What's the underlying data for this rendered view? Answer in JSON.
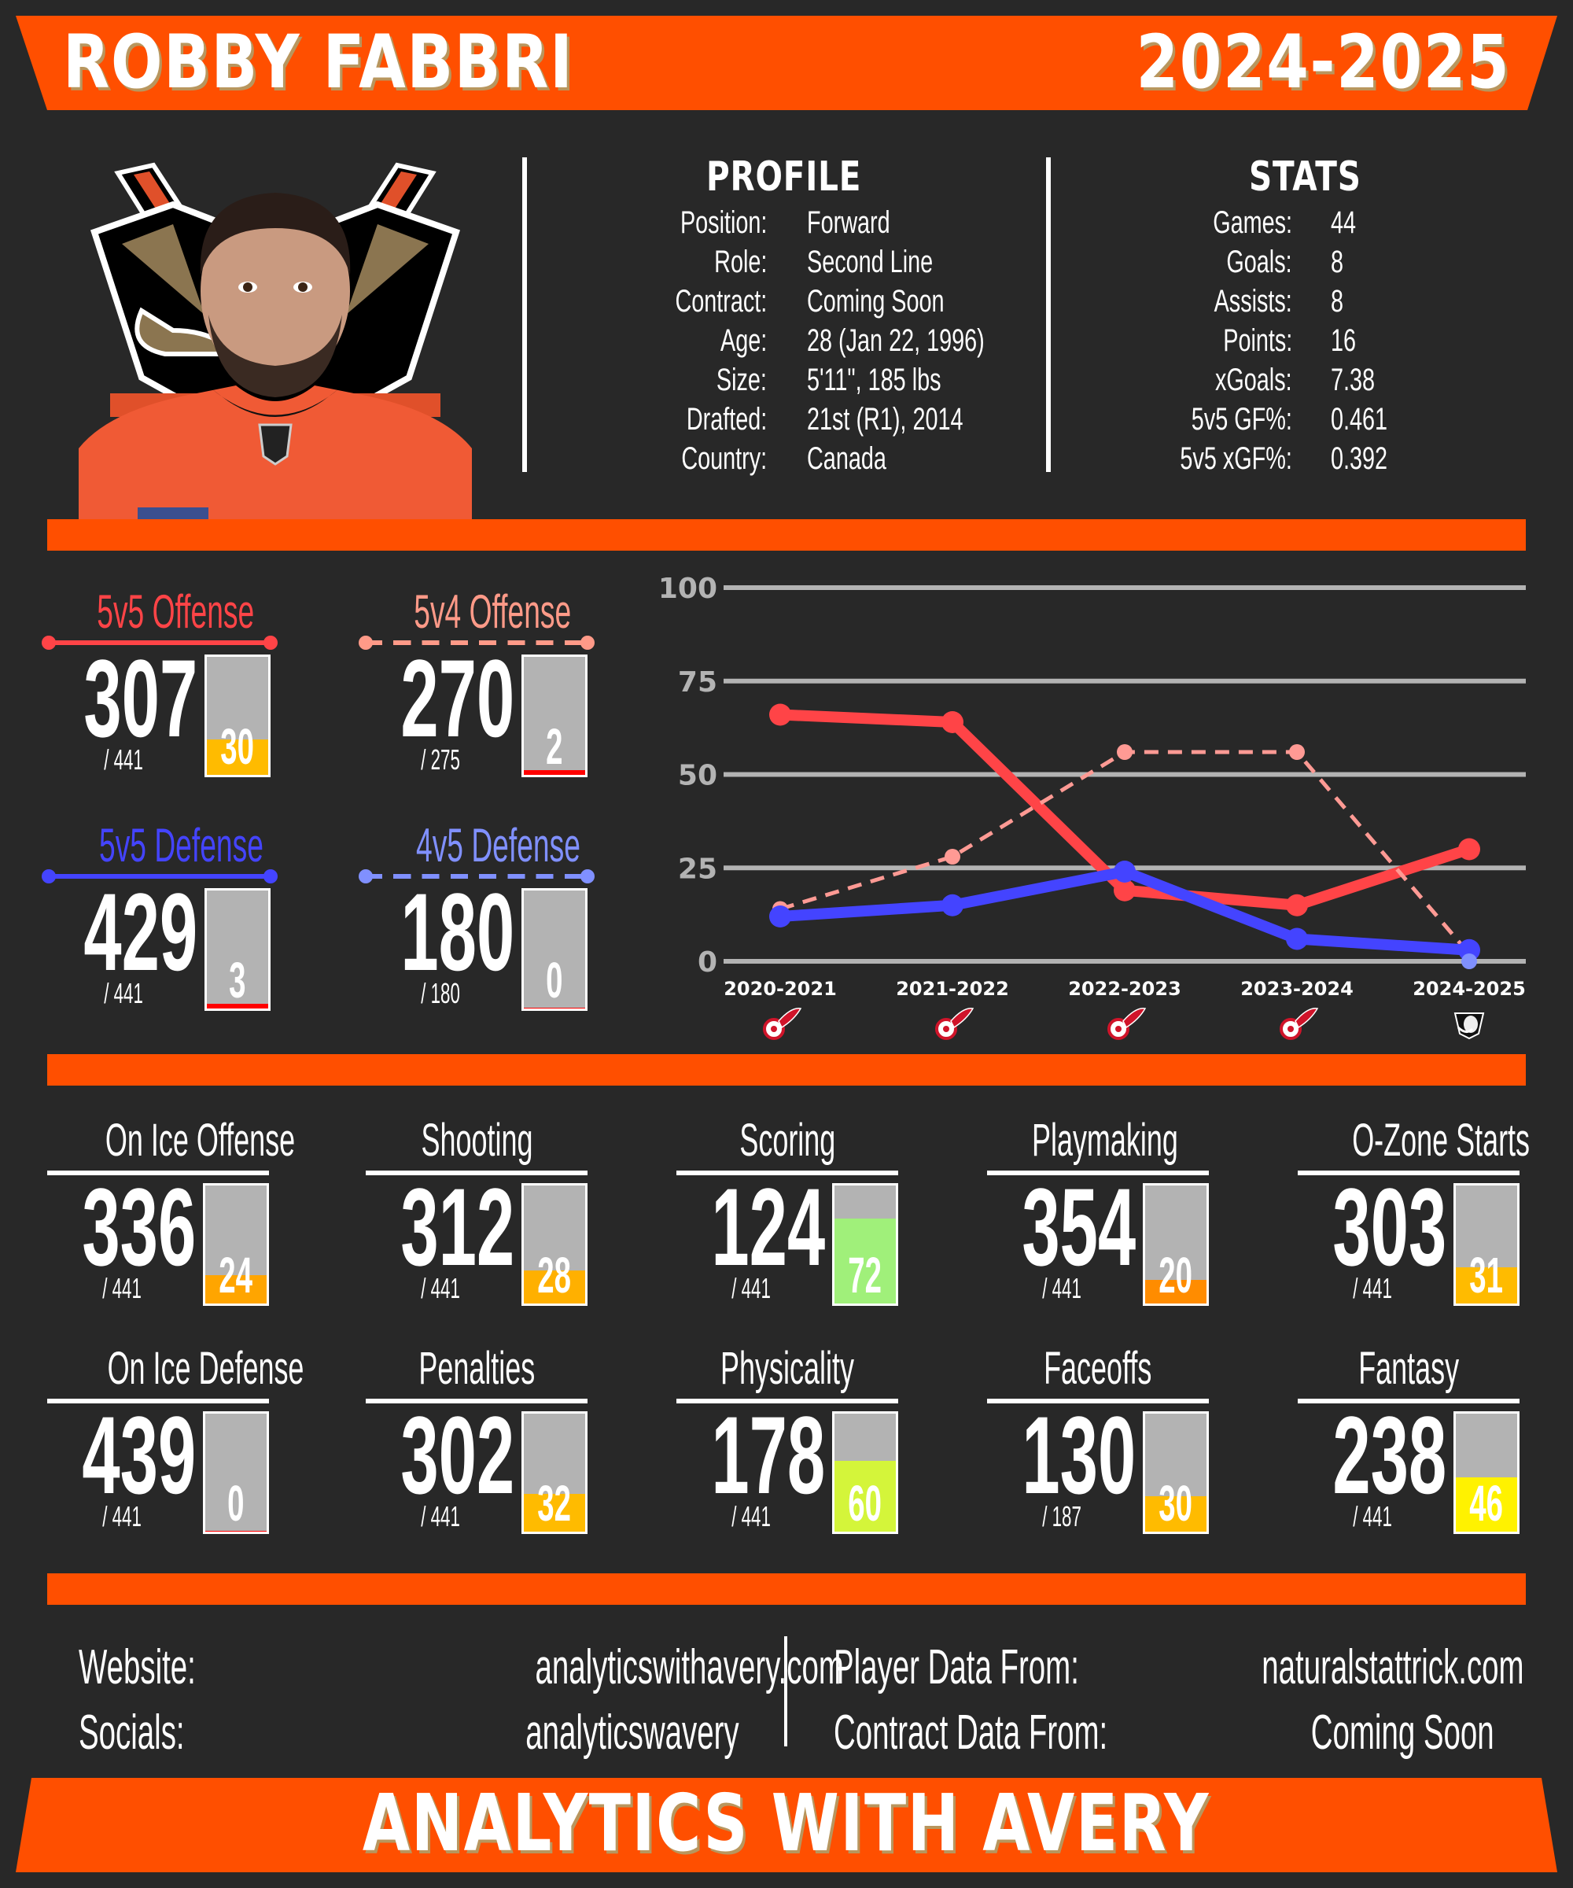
{
  "header": {
    "player_name": "ROBBY FABBRI",
    "season": "2024-2025",
    "banner_color": "#ff4f00"
  },
  "profile": {
    "title": "PROFILE",
    "rows": [
      {
        "label": "Position:",
        "value": "Forward"
      },
      {
        "label": "Role:",
        "value": "Second Line"
      },
      {
        "label": "Contract:",
        "value": "Coming Soon"
      },
      {
        "label": "Age:",
        "value": "28 (Jan 22, 1996)"
      },
      {
        "label": "Size:",
        "value": "5'11\", 185 lbs"
      },
      {
        "label": "Drafted:",
        "value": "21st (R1), 2014"
      },
      {
        "label": "Country:",
        "value": "Canada"
      }
    ]
  },
  "stats": {
    "title": "STATS",
    "rows": [
      {
        "label": "Games:",
        "value": "44"
      },
      {
        "label": "Goals:",
        "value": "8"
      },
      {
        "label": "Assists:",
        "value": "8"
      },
      {
        "label": "Points:",
        "value": "16"
      },
      {
        "label": "xGoals:",
        "value": "7.38"
      },
      {
        "label": "5v5 GF%:",
        "value": "0.461"
      },
      {
        "label": "5v5 xGF%:",
        "value": "0.392"
      }
    ]
  },
  "photo": {
    "icon": "player-headshot-with-ducks-logo",
    "team_logo": "anaheim-ducks-logo"
  },
  "situational": [
    {
      "title": "5v5 Offense",
      "rank": "307",
      "out_of": "/ 441",
      "percentile": "30",
      "pct_value": 30,
      "color": "#ff4447",
      "line": "solid",
      "fill_color": "#ffbb00"
    },
    {
      "title": "5v4 Offense",
      "rank": "270",
      "out_of": "/ 275",
      "percentile": "2",
      "pct_value": 2,
      "color": "#ff9a88",
      "line": "dashed",
      "fill_color": "#ff0000"
    },
    {
      "title": "5v5 Defense",
      "rank": "429",
      "out_of": "/ 441",
      "percentile": "3",
      "pct_value": 3,
      "color": "#4444ff",
      "line": "solid",
      "fill_color": "#ff0000"
    },
    {
      "title": "4v5 Defense",
      "rank": "180",
      "out_of": "/ 180",
      "percentile": "0",
      "pct_value": 0.5,
      "color": "#8090ff",
      "line": "dashed",
      "fill_color": "#ff0000"
    }
  ],
  "chart_data": {
    "type": "line",
    "title": "",
    "xlabel": "",
    "ylabel": "",
    "ylim": [
      0,
      100
    ],
    "yticks": [
      0,
      25,
      50,
      75,
      100
    ],
    "grid": true,
    "categories": [
      "2020-2021",
      "2021-2022",
      "2022-2023",
      "2023-2024",
      "2024-2025"
    ],
    "team_logos": [
      "detroit-red-wings-logo",
      "detroit-red-wings-logo",
      "detroit-red-wings-logo",
      "detroit-red-wings-logo",
      "anaheim-ducks-logo"
    ],
    "series": [
      {
        "name": "5v5 Offense",
        "color": "#ff4447",
        "style": "solid",
        "values": [
          66,
          64,
          19,
          15,
          30
        ]
      },
      {
        "name": "5v4 Offense",
        "color": "#ff9a94",
        "style": "dashed",
        "values": [
          14,
          28,
          56,
          56,
          2
        ]
      },
      {
        "name": "5v5 Defense",
        "color": "#4444ff",
        "style": "solid",
        "values": [
          12,
          15,
          24,
          6,
          3
        ]
      },
      {
        "name": "4v5 Defense",
        "color": "#8090ff",
        "style": "dashed",
        "values": [
          null,
          null,
          null,
          null,
          0
        ]
      }
    ]
  },
  "categories": [
    {
      "title": "On Ice Offense",
      "rank": "336",
      "out_of": "/ 441",
      "percentile": "24",
      "pct_value": 24,
      "fill_color": "#ffa500"
    },
    {
      "title": "Shooting",
      "rank": "312",
      "out_of": "/ 441",
      "percentile": "28",
      "pct_value": 28,
      "fill_color": "#ffb000"
    },
    {
      "title": "Scoring",
      "rank": "124",
      "out_of": "/ 441",
      "percentile": "72",
      "pct_value": 72,
      "fill_color": "#a0f07a"
    },
    {
      "title": "Playmaking",
      "rank": "354",
      "out_of": "/ 441",
      "percentile": "20",
      "pct_value": 20,
      "fill_color": "#ff8c00"
    },
    {
      "title": "O-Zone Starts",
      "rank": "303",
      "out_of": "/ 441",
      "percentile": "31",
      "pct_value": 31,
      "fill_color": "#ffbb00"
    },
    {
      "title": "On Ice Defense",
      "rank": "439",
      "out_of": "/ 441",
      "percentile": "0",
      "pct_value": 0.5,
      "fill_color": "#ff0000"
    },
    {
      "title": "Penalties",
      "rank": "302",
      "out_of": "/ 441",
      "percentile": "32",
      "pct_value": 32,
      "fill_color": "#ffbb00"
    },
    {
      "title": "Physicality",
      "rank": "178",
      "out_of": "/ 441",
      "percentile": "60",
      "pct_value": 60,
      "fill_color": "#d4f53a"
    },
    {
      "title": "Faceoffs",
      "rank": "130",
      "out_of": "/ 187",
      "percentile": "30",
      "pct_value": 30,
      "fill_color": "#ffbb00"
    },
    {
      "title": "Fantasy",
      "rank": "238",
      "out_of": "/ 441",
      "percentile": "46",
      "pct_value": 46,
      "fill_color": "#fff200"
    }
  ],
  "footer": {
    "website_label": "Website:",
    "website_value": "analyticswithavery.com",
    "socials_label": "Socials:",
    "socials_value": "analyticswavery",
    "player_data_label": "Player Data From:",
    "player_data_value": "naturalstattrick.com",
    "contract_data_label": "Contract Data From:",
    "contract_data_value": "Coming Soon",
    "brand": "ANALYTICS WITH AVERY"
  }
}
